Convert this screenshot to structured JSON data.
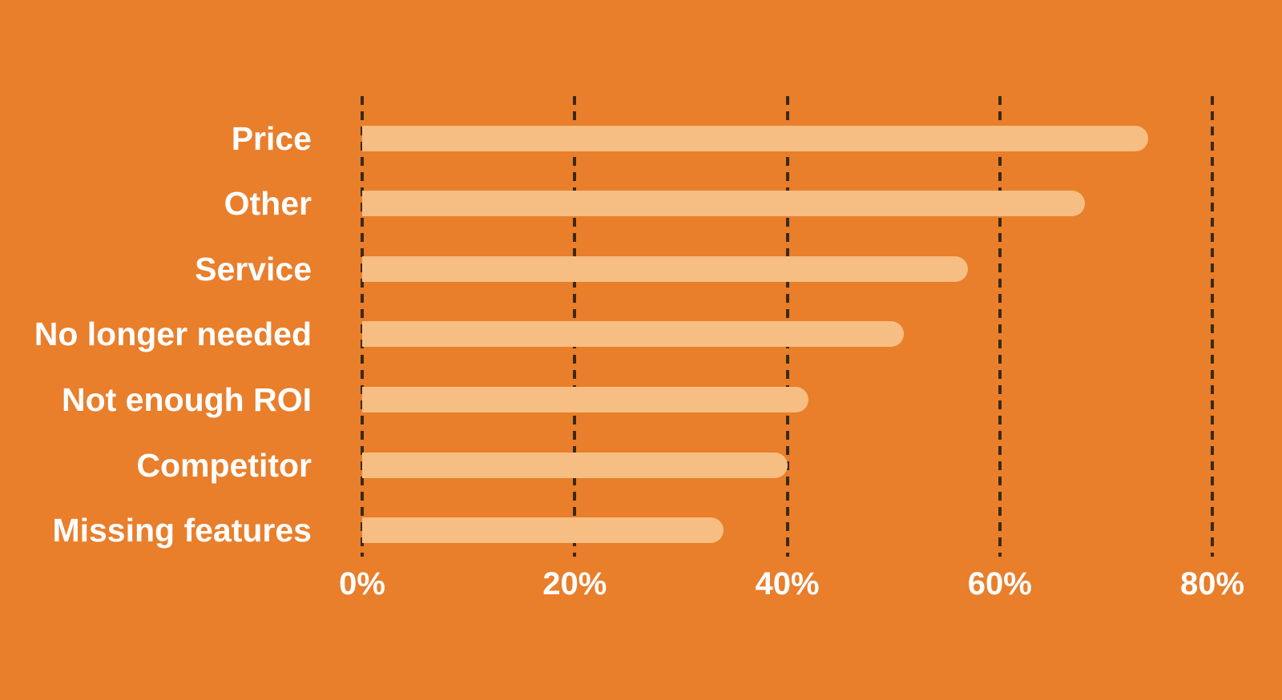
{
  "chart_data": {
    "type": "bar",
    "orientation": "horizontal",
    "title": "",
    "xlabel": "",
    "ylabel": "",
    "categories": [
      "Price",
      "Other",
      "Service",
      "No longer needed",
      "Not enough ROI",
      "Competitor",
      "Missing features"
    ],
    "values": [
      74,
      68,
      57,
      51,
      42,
      40,
      34
    ],
    "unit": "%",
    "x_tick_labels": [
      "0%",
      "20%",
      "40%",
      "60%",
      "80%"
    ],
    "x_tick_values": [
      0,
      20,
      40,
      60,
      80
    ],
    "xlim": [
      0,
      80
    ],
    "grid": "dashed-vertical",
    "legend": "none",
    "colors": {
      "background": "#E97E2B",
      "bar": "#F6BE82",
      "gridline": "#3A2A15",
      "text": "#FFFFFF"
    }
  }
}
